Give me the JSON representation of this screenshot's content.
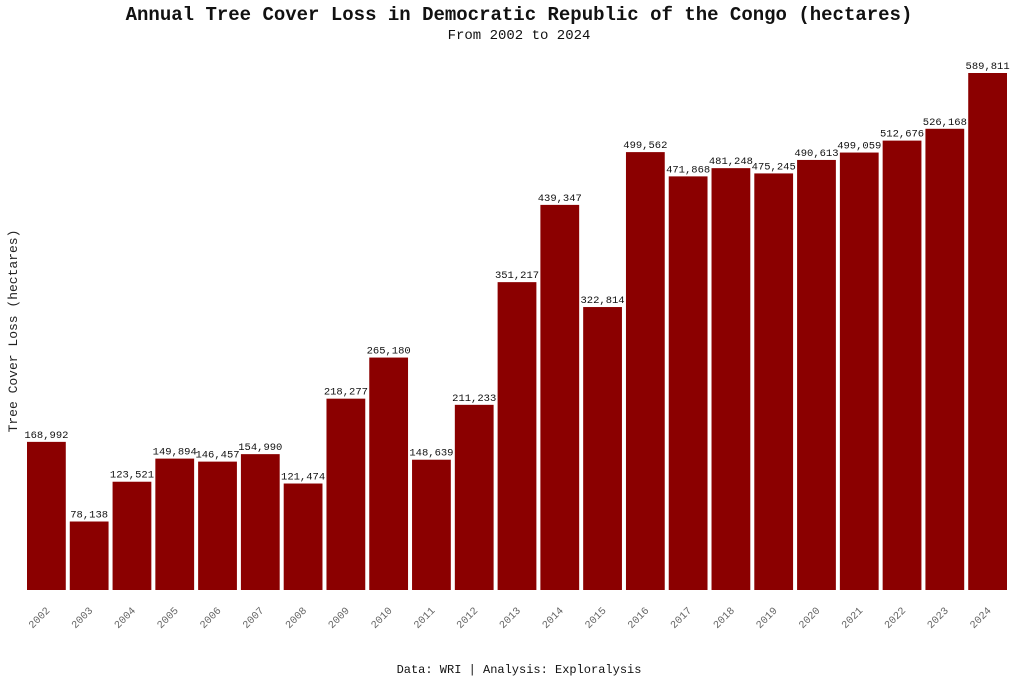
{
  "chart_data": {
    "type": "bar",
    "title": "Annual Tree Cover Loss in Democratic Republic of the Congo (hectares)",
    "subtitle": "From 2002 to 2024",
    "ylabel": "Tree Cover Loss (hectares)",
    "caption": "Data: WRI | Analysis: Exploralysis",
    "categories": [
      "2002",
      "2003",
      "2004",
      "2005",
      "2006",
      "2007",
      "2008",
      "2009",
      "2010",
      "2011",
      "2012",
      "2013",
      "2014",
      "2015",
      "2016",
      "2017",
      "2018",
      "2019",
      "2020",
      "2021",
      "2022",
      "2023",
      "2024"
    ],
    "values": [
      168992,
      78138,
      123521,
      149894,
      146457,
      154990,
      121474,
      218277,
      265180,
      148639,
      211233,
      351217,
      439347,
      322814,
      499562,
      471868,
      481248,
      475245,
      490613,
      499059,
      512676,
      526168,
      589811
    ],
    "value_labels": [
      "168,992",
      "78,138",
      "123,521",
      "149,894",
      "146,457",
      "154,990",
      "121,474",
      "218,277",
      "265,180",
      "148,639",
      "211,233",
      "351,217",
      "439,347",
      "322,814",
      "499,562",
      "471,868",
      "481,248",
      "475,245",
      "490,613",
      "499,059",
      "512,676",
      "526,168",
      "589,811"
    ],
    "ylim": [
      0,
      589811
    ],
    "bar_color": "#8B0000",
    "grid": false,
    "legend": "none"
  }
}
